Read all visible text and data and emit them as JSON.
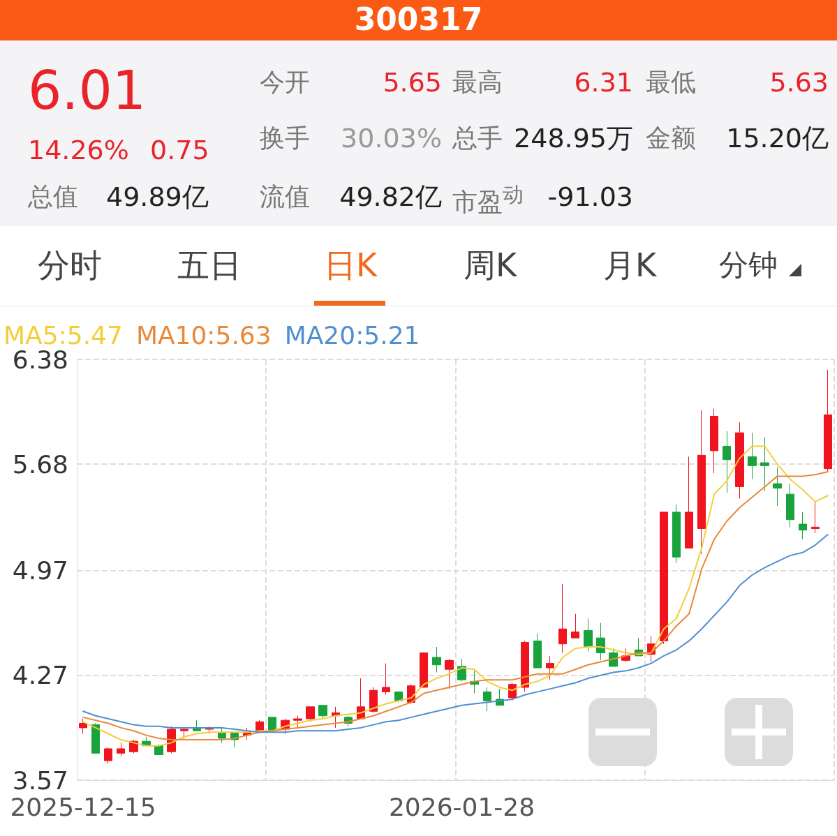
{
  "chart_data": [
    {
      "type": "other",
      "title": "300317",
      "annotations": [
        "6.01",
        "14.26%",
        "0.75",
        "总值",
        "49.89亿",
        "今开",
        "5.65",
        "最高",
        "6.31",
        "最低",
        "5.63",
        "换手",
        "30.03%",
        "总手",
        "248.95万",
        "金额",
        "15.20亿",
        "流值",
        "49.82亿",
        "市盈$^{动}$",
        "-91.03",
        "分时",
        "五日",
        "日K",
        "周K",
        "月K",
        "分钟"
      ]
    },
    {
      "type": "candlestick",
      "categories": [
        "2025-12-15",
        null,
        null,
        null,
        null,
        null,
        null,
        null,
        null,
        null,
        null,
        null,
        null,
        null,
        null,
        null,
        null,
        null,
        null,
        null,
        null,
        null,
        null,
        null,
        null,
        null,
        null,
        null,
        null,
        null,
        "2026-01-28",
        null,
        null,
        null,
        null,
        null,
        null,
        null,
        null,
        null,
        null,
        null,
        null,
        null,
        null,
        null,
        null,
        null,
        null,
        null,
        null,
        null,
        null,
        null,
        null,
        null,
        null,
        null,
        null,
        null
      ],
      "ohlc": [
        [
          3.92,
          3.98,
          3.88,
          3.95
        ],
        [
          3.94,
          3.95,
          3.75,
          3.75
        ],
        [
          3.7,
          3.79,
          3.68,
          3.78
        ],
        [
          3.75,
          3.82,
          3.73,
          3.78
        ],
        [
          3.76,
          3.84,
          3.75,
          3.83
        ],
        [
          3.83,
          3.86,
          3.8,
          3.8
        ],
        [
          3.8,
          3.81,
          3.74,
          3.74
        ],
        [
          3.76,
          3.93,
          3.75,
          3.91
        ],
        [
          3.9,
          3.92,
          3.84,
          3.91
        ],
        [
          3.92,
          3.97,
          3.9,
          3.9
        ],
        [
          3.91,
          3.93,
          3.88,
          3.92
        ],
        [
          3.89,
          3.92,
          3.82,
          3.85
        ],
        [
          3.89,
          3.89,
          3.79,
          3.84
        ],
        [
          3.87,
          3.92,
          3.84,
          3.89
        ],
        [
          3.9,
          3.97,
          3.9,
          3.96
        ],
        [
          3.99,
          3.99,
          3.9,
          3.9
        ],
        [
          3.91,
          3.98,
          3.88,
          3.97
        ],
        [
          3.97,
          4.0,
          3.92,
          3.98
        ],
        [
          3.98,
          4.06,
          3.96,
          4.06
        ],
        [
          4.07,
          4.07,
          3.98,
          4.0
        ],
        [
          4.0,
          4.06,
          3.92,
          4.02
        ],
        [
          3.99,
          4.0,
          3.93,
          3.95
        ],
        [
          3.98,
          4.25,
          3.98,
          4.06
        ],
        [
          4.03,
          4.19,
          4.02,
          4.17
        ],
        [
          4.16,
          4.35,
          4.14,
          4.19
        ],
        [
          4.16,
          4.16,
          4.09,
          4.1
        ],
        [
          4.09,
          4.21,
          4.08,
          4.2
        ],
        [
          4.19,
          4.42,
          4.19,
          4.42
        ],
        [
          4.39,
          4.46,
          4.29,
          4.34
        ],
        [
          4.31,
          4.38,
          4.18,
          4.37
        ],
        [
          4.33,
          4.38,
          4.23,
          4.24
        ],
        [
          4.23,
          4.3,
          4.15,
          4.21
        ],
        [
          4.16,
          4.19,
          4.03,
          4.1
        ],
        [
          4.11,
          4.18,
          4.07,
          4.07
        ],
        [
          4.12,
          4.22,
          4.1,
          4.21
        ],
        [
          4.19,
          4.5,
          4.16,
          4.49
        ],
        [
          4.5,
          4.55,
          4.32,
          4.32
        ],
        [
          4.32,
          4.4,
          4.24,
          4.35
        ],
        [
          4.48,
          4.88,
          4.42,
          4.58
        ],
        [
          4.52,
          4.68,
          4.52,
          4.56
        ],
        [
          4.57,
          4.65,
          4.43,
          4.46
        ],
        [
          4.52,
          4.62,
          4.37,
          4.42
        ],
        [
          4.42,
          4.45,
          4.33,
          4.33
        ],
        [
          4.37,
          4.45,
          4.36,
          4.4
        ],
        [
          4.44,
          4.52,
          4.4,
          4.4
        ],
        [
          4.41,
          4.53,
          4.36,
          4.48
        ],
        [
          4.5,
          5.36,
          4.48,
          5.36
        ],
        [
          5.36,
          5.41,
          5.02,
          5.06
        ],
        [
          5.12,
          5.73,
          5.12,
          5.36
        ],
        [
          5.25,
          6.04,
          5.08,
          5.74
        ],
        [
          5.77,
          6.05,
          5.62,
          6.0
        ],
        [
          5.8,
          5.9,
          5.49,
          5.71
        ],
        [
          5.53,
          5.96,
          5.45,
          5.89
        ],
        [
          5.73,
          5.89,
          5.58,
          5.67
        ],
        [
          5.69,
          5.86,
          5.5,
          5.67
        ],
        [
          5.55,
          5.66,
          5.4,
          5.52
        ],
        [
          5.48,
          5.55,
          5.26,
          5.31
        ],
        [
          5.28,
          5.36,
          5.18,
          5.24
        ],
        [
          5.25,
          5.43,
          5.22,
          5.26
        ],
        [
          5.65,
          6.31,
          5.63,
          6.01
        ]
      ],
      "colors": [
        "#f0141e",
        "#19a33c",
        "#f0141e",
        "#f0141e",
        "#f0141e",
        "#19a33c",
        "#19a33c",
        "#f0141e",
        "#f0141e",
        "#19a33c",
        "#f0141e",
        "#19a33c",
        "#19a33c",
        "#f0141e",
        "#f0141e",
        "#19a33c",
        "#f0141e",
        "#f0141e",
        "#f0141e",
        "#19a33c",
        "#f0141e",
        "#19a33c",
        "#f0141e",
        "#f0141e",
        "#f0141e",
        "#19a33c",
        "#f0141e",
        "#f0141e",
        "#19a33c",
        "#f0141e",
        "#19a33c",
        "#19a33c",
        "#19a33c",
        "#19a33c",
        "#f0141e",
        "#f0141e",
        "#19a33c",
        "#f0141e",
        "#f0141e",
        "#f0141e",
        "#19a33c",
        "#19a33c",
        "#19a33c",
        "#f0141e",
        "#19a33c",
        "#f0141e",
        "#f0141e",
        "#19a33c",
        "#f0141e",
        "#f0141e",
        "#f0141e",
        "#19a33c",
        "#f0141e",
        "#19a33c",
        "#19a33c",
        "#19a33c",
        "#19a33c",
        "#19a33c",
        "#f0141e",
        "#f0141e"
      ],
      "series": [
        {
          "type": "line",
          "name": "MA5:5.47",
          "color": "#f2cf3a",
          "values": [
            3.96,
            3.92,
            3.88,
            3.84,
            3.82,
            3.8,
            3.8,
            3.82,
            3.86,
            3.88,
            3.89,
            3.89,
            3.89,
            3.89,
            3.9,
            3.9,
            3.93,
            3.95,
            3.97,
            3.98,
            4.0,
            4.01,
            4.02,
            4.05,
            4.08,
            4.1,
            4.12,
            4.21,
            4.25,
            4.28,
            4.32,
            4.31,
            4.23,
            4.19,
            4.17,
            4.21,
            4.23,
            4.27,
            4.39,
            4.45,
            4.46,
            4.46,
            4.44,
            4.42,
            4.41,
            4.42,
            4.58,
            4.65,
            4.85,
            5.12,
            5.48,
            5.57,
            5.72,
            5.8,
            5.8,
            5.68,
            5.58,
            5.51,
            5.43,
            5.47
          ]
        },
        {
          "type": "line",
          "name": "MA10:5.63",
          "color": "#e8893a",
          "values": [
            3.99,
            3.97,
            3.95,
            3.92,
            3.9,
            3.87,
            3.85,
            3.84,
            3.84,
            3.84,
            3.84,
            3.84,
            3.85,
            3.87,
            3.89,
            3.9,
            3.91,
            3.92,
            3.93,
            3.94,
            3.95,
            3.96,
            3.98,
            4.0,
            4.03,
            4.06,
            4.09,
            4.15,
            4.17,
            4.19,
            4.21,
            4.23,
            4.24,
            4.24,
            4.24,
            4.26,
            4.28,
            4.28,
            4.28,
            4.31,
            4.34,
            4.36,
            4.38,
            4.4,
            4.42,
            4.42,
            4.5,
            4.6,
            4.68,
            4.98,
            5.18,
            5.3,
            5.39,
            5.46,
            5.53,
            5.6,
            5.6,
            5.6,
            5.61,
            5.63
          ]
        },
        {
          "type": "line",
          "name": "MA20:5.21",
          "color": "#4f8fd0",
          "values": [
            4.03,
            4.0,
            3.98,
            3.96,
            3.94,
            3.93,
            3.93,
            3.92,
            3.92,
            3.92,
            3.92,
            3.92,
            3.91,
            3.9,
            3.89,
            3.89,
            3.89,
            3.9,
            3.9,
            3.9,
            3.9,
            3.91,
            3.92,
            3.94,
            3.96,
            3.97,
            3.99,
            4.01,
            4.03,
            4.05,
            4.07,
            4.08,
            4.09,
            4.1,
            4.11,
            4.14,
            4.16,
            4.18,
            4.2,
            4.22,
            4.25,
            4.27,
            4.29,
            4.3,
            4.32,
            4.35,
            4.4,
            4.44,
            4.5,
            4.58,
            4.67,
            4.76,
            4.87,
            4.94,
            4.99,
            5.03,
            5.07,
            5.09,
            5.14,
            5.21
          ]
        }
      ],
      "ylim": [
        3.57,
        6.38
      ],
      "yticks": [
        3.57,
        4.27,
        4.97,
        5.68,
        6.38
      ],
      "grid": true,
      "legend": "top left",
      "marker": "none",
      "line_style": "solid"
    }
  ]
}
